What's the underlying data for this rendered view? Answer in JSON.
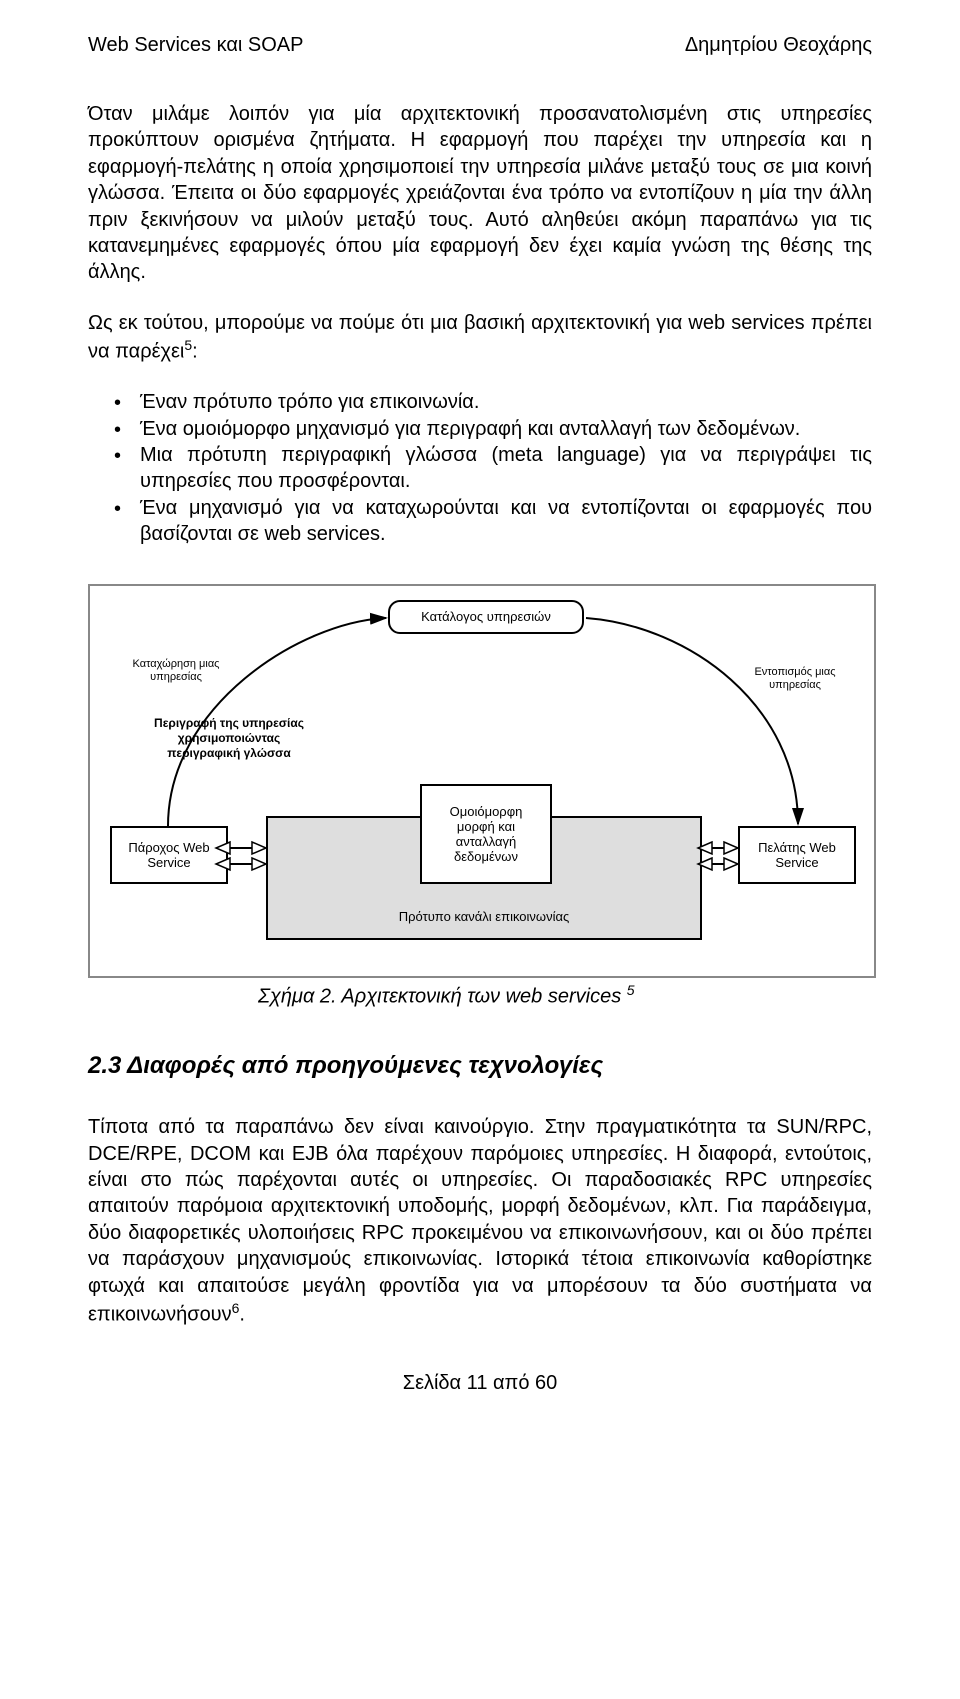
{
  "header": {
    "left": "Web Services και SOAP",
    "right": "Δημητρίου Θεοχάρης"
  },
  "para1": "Όταν μιλάμε λοιπόν για μία αρχιτεκτονική προσανατολισμένη στις υπηρεσίες προκύπτουν ορισμένα ζητήματα. Η εφαρμογή που παρέχει την υπηρεσία και η εφαρμογή-πελάτης η οποία χρησιμοποιεί την υπηρεσία μιλάνε μεταξύ τους σε μια κοινή γλώσσα. Έπειτα οι δύο εφαρμογές χρειάζονται ένα τρόπο να εντοπίζουν η μία την άλλη πριν ξεκινήσουν να μιλούν μεταξύ τους. Αυτό αληθεύει ακόμη παραπάνω για τις κατανεμημένες εφαρμογές όπου μία εφαρμογή δεν έχει καμία γνώση της θέσης της άλλης.",
  "para2_a": "Ως εκ τούτου, μπορούμε να πούμε ότι μια βασική αρχιτεκτονική για web services πρέπει να παρέχει",
  "para2_sup": "5",
  "para2_b": ":",
  "bullets": [
    "Έναν πρότυπο τρόπο για επικοινωνία.",
    "Ένα ομοιόμορφο μηχανισμό για περιγραφή και ανταλλαγή των δεδομένων.",
    "Mια πρότυπη περιγραφική γλώσσα (meta language) για να περιγράψει τις υπηρεσίες που προσφέρονται.",
    "Ένα μηχανισμό για να καταχωρούνται και να εντοπίζονται οι εφαρμογές που βασίζονται σε web services."
  ],
  "diagram": {
    "catalog": "Κατάλογος υπηρεσιών",
    "register_label": "Καταχώρηση μιας\nυπηρεσίας",
    "discover_label": "Εντοπισμός μιας\nυπηρεσίας",
    "description": "Περιγραφή της υπηρεσίας\nχρησιμοποιώντας\nπεριγραφική γλώσσα",
    "provider": "Πάροχος Web\nService",
    "consumer": "Πελάτης Web\nService",
    "uniform": "Ομοιόμορφη\nμορφή και\nανταλλαγή\nδεδομένων",
    "channel": "Πρότυπο κανάλι επικοινωνίας",
    "colors": {
      "border": "#000000",
      "frame_border": "#888888",
      "channel_fill": "#dedede",
      "background": "#ffffff"
    }
  },
  "caption_a": "Σχήμα 2. Αρχιτεκτονική των web services ",
  "caption_sup": "5",
  "section_title": "2.3 Διαφορές από προηγούμενες τεχνολογίες",
  "para3_a": "Τίποτα από τα παραπάνω δεν είναι καινούργιο. Στην πραγματικότητα τα SUN/RPC, DCE/RPE, DCOM και EJB όλα παρέχουν παρόμοιες υπηρεσίες. Η διαφορά, εντούτοις, είναι στο πώς παρέχονται  αυτές οι υπηρεσίες. Οι παραδοσιακές RPC υπηρεσίες απαιτούν παρόμοια αρχιτεκτονική υποδομής, μορφή δεδομένων, κλπ. Για παράδειγμα, δύο διαφορετικές υλοποιήσεις RPC προκειμένου να  επικοινωνήσουν, και οι δύο πρέπει να παράσχουν μηχανισμούς επικοινωνίας. Ιστορικά τέτοια επικοινωνία καθορίστηκε φτωχά και απαιτούσε μεγάλη φροντίδα για να μπορέσουν τα δύο συστήματα να επικοινωνήσουν",
  "para3_sup": "6",
  "para3_b": ".",
  "footer": "Σελίδα 11 από 60"
}
